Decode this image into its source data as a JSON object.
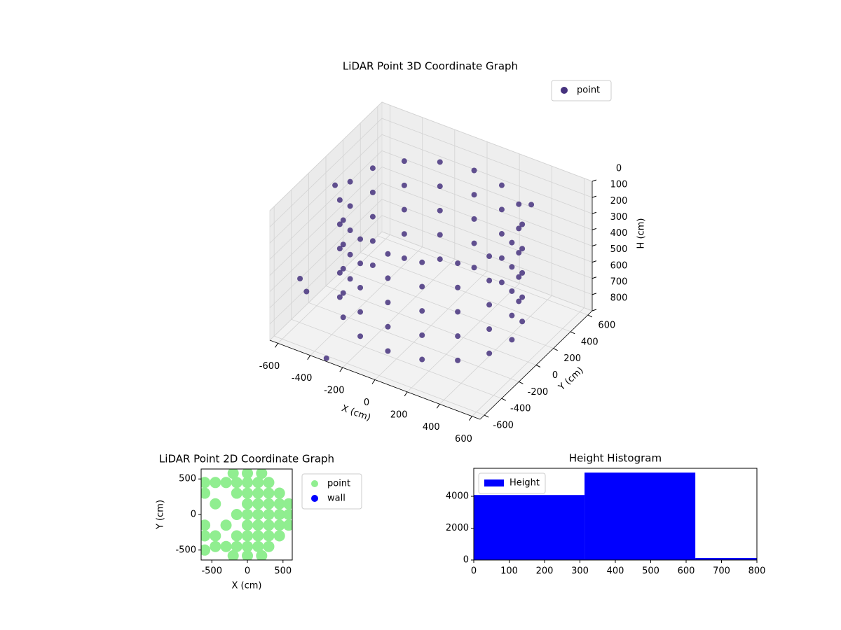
{
  "chart_data": [
    {
      "type": "scatter3d",
      "title": "LiDAR Point 3D Coordinate Graph",
      "xlabel": "X (cm)",
      "ylabel": "Y (cm)",
      "zlabel": "H (cm)",
      "xlim": [
        -650,
        650
      ],
      "ylim": [
        -650,
        650
      ],
      "zlim": [
        800,
        0
      ],
      "xticks": [
        -600,
        -400,
        -200,
        0,
        200,
        400,
        600
      ],
      "yticks": [
        -600,
        -400,
        -200,
        0,
        200,
        400,
        600
      ],
      "zticks": [
        0,
        100,
        200,
        300,
        400,
        500,
        600,
        700,
        800
      ],
      "grid": true,
      "legend": "upper right",
      "series": [
        {
          "name": "point",
          "color": "#46327e",
          "x": [
            500,
            500,
            500,
            500,
            500,
            462,
            462,
            462,
            462,
            462,
            354,
            354,
            354,
            354,
            354,
            191,
            191,
            191,
            191,
            191,
            0,
            0,
            0,
            0,
            0,
            -191,
            -191,
            -191,
            -191,
            -191,
            -354,
            -354,
            -354,
            -354,
            -354,
            -462,
            -462,
            -462,
            -462,
            -462,
            -500,
            -500,
            -500,
            -500,
            -500,
            -462,
            -462,
            -462,
            -462,
            -462,
            -354,
            -354,
            -354,
            -354,
            -354,
            -191,
            -191,
            -191,
            -191,
            -191,
            0,
            0,
            0,
            0,
            0,
            191,
            191,
            191,
            191,
            191,
            354,
            354,
            354,
            354,
            354,
            462,
            462,
            462,
            462,
            462,
            -700,
            -650,
            -450,
            300,
            -300
          ],
          "y": [
            0,
            0,
            0,
            0,
            0,
            191,
            191,
            191,
            191,
            191,
            354,
            354,
            354,
            354,
            354,
            462,
            462,
            462,
            462,
            462,
            500,
            500,
            500,
            500,
            500,
            462,
            462,
            462,
            462,
            462,
            354,
            354,
            354,
            354,
            354,
            191,
            191,
            191,
            191,
            191,
            0,
            0,
            0,
            0,
            0,
            -191,
            -191,
            -191,
            -191,
            -191,
            -354,
            -354,
            -354,
            -354,
            -354,
            -462,
            -462,
            -462,
            -462,
            -462,
            -500,
            -500,
            -500,
            -500,
            -500,
            -462,
            -462,
            -462,
            -462,
            -462,
            -354,
            -354,
            -354,
            -354,
            -354,
            -191,
            -191,
            -191,
            -191,
            -191,
            200,
            -300,
            -600,
            600,
            -650
          ],
          "z": [
            100,
            250,
            400,
            550,
            700,
            100,
            250,
            400,
            550,
            700,
            100,
            250,
            400,
            550,
            700,
            100,
            250,
            400,
            550,
            700,
            100,
            250,
            400,
            550,
            700,
            100,
            250,
            400,
            550,
            700,
            100,
            250,
            400,
            550,
            700,
            100,
            250,
            400,
            550,
            700,
            100,
            250,
            400,
            550,
            700,
            100,
            250,
            400,
            550,
            700,
            100,
            250,
            400,
            550,
            700,
            100,
            250,
            400,
            550,
            700,
            100,
            250,
            400,
            550,
            700,
            100,
            250,
            400,
            550,
            700,
            100,
            250,
            400,
            550,
            700,
            100,
            250,
            400,
            550,
            700,
            300,
            600,
            450,
            250,
            780
          ]
        }
      ]
    },
    {
      "type": "scatter",
      "title": "LiDAR Point 2D Coordinate Graph",
      "xlabel": "X (cm)",
      "ylabel": "Y (cm)",
      "xlim": [
        -650,
        630
      ],
      "ylim": [
        -640,
        640
      ],
      "xticks": [
        -500,
        0,
        500
      ],
      "yticks": [
        -500,
        0,
        500
      ],
      "legend": "outside upper right",
      "series": [
        {
          "name": "point",
          "color": "#90ee90",
          "x": [
            0,
            0,
            0,
            0,
            0,
            0,
            0,
            150,
            150,
            150,
            150,
            150,
            150,
            150,
            300,
            300,
            300,
            300,
            300,
            300,
            300,
            450,
            450,
            450,
            450,
            450,
            580,
            580,
            580,
            -150,
            -150,
            -150,
            -150,
            -150,
            -300,
            -300,
            -300,
            -450,
            -450,
            -450,
            -450,
            -600,
            -600,
            -600,
            -600,
            -600,
            -200,
            0,
            200,
            -200,
            0,
            200
          ],
          "y": [
            -450,
            -300,
            -150,
            0,
            150,
            300,
            450,
            -450,
            -300,
            -150,
            0,
            150,
            300,
            450,
            -450,
            -300,
            -150,
            0,
            150,
            300,
            450,
            -300,
            -150,
            0,
            150,
            300,
            -150,
            0,
            150,
            -450,
            -300,
            0,
            300,
            450,
            -450,
            -150,
            450,
            -450,
            -300,
            150,
            450,
            -500,
            -300,
            -150,
            300,
            450,
            580,
            580,
            580,
            -580,
            -580,
            -580
          ]
        },
        {
          "name": "wall",
          "color": "#0000ff",
          "x": [],
          "y": []
        }
      ]
    },
    {
      "type": "histogram",
      "title": "Height Histogram",
      "bins": [
        0,
        313,
        626,
        939
      ],
      "xlim": [
        0,
        800
      ],
      "ylim": [
        0,
        5760
      ],
      "xticks": [
        0,
        100,
        200,
        300,
        400,
        500,
        600,
        700,
        800
      ],
      "yticks": [
        0,
        2000,
        4000
      ],
      "legend": "upper left",
      "series": [
        {
          "name": "Height",
          "color": "#0000ff",
          "values": [
            4080,
            5490,
            130
          ]
        }
      ]
    }
  ]
}
